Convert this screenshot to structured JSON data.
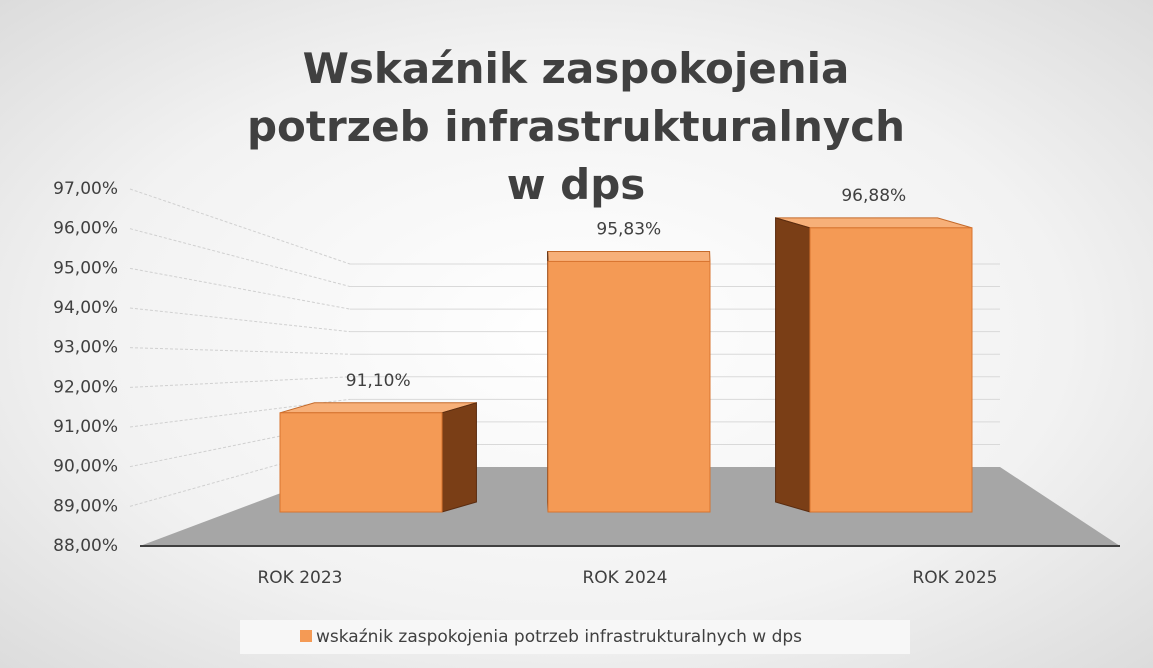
{
  "chart_data": {
    "type": "bar3d",
    "title": "Wskaźnik zaspokojenia potrzeb infrastrukturalnych w dps",
    "categories": [
      "ROK 2023",
      "ROK 2024",
      "ROK 2025"
    ],
    "series": [
      {
        "name": "wskaźnik zaspokojenia potrzeb infrastrukturalnych w dps",
        "color": "#f49a55",
        "values": [
          91.1,
          95.83,
          96.88
        ],
        "value_labels": [
          "91,10%",
          "95,83%",
          "96,88%"
        ]
      }
    ],
    "ylim": [
      88,
      97
    ],
    "yticks": [
      {
        "value": 88,
        "label": "88,00%"
      },
      {
        "value": 89,
        "label": "89,00%"
      },
      {
        "value": 90,
        "label": "90,00%"
      },
      {
        "value": 91,
        "label": "91,00%"
      },
      {
        "value": 92,
        "label": "92,00%"
      },
      {
        "value": 93,
        "label": "93,00%"
      },
      {
        "value": 94,
        "label": "94,00%"
      },
      {
        "value": 95,
        "label": "95,00%"
      },
      {
        "value": 96,
        "label": "96,00%"
      },
      {
        "value": 97,
        "label": "97,00%"
      }
    ],
    "grid": true,
    "legend": "bottom"
  }
}
